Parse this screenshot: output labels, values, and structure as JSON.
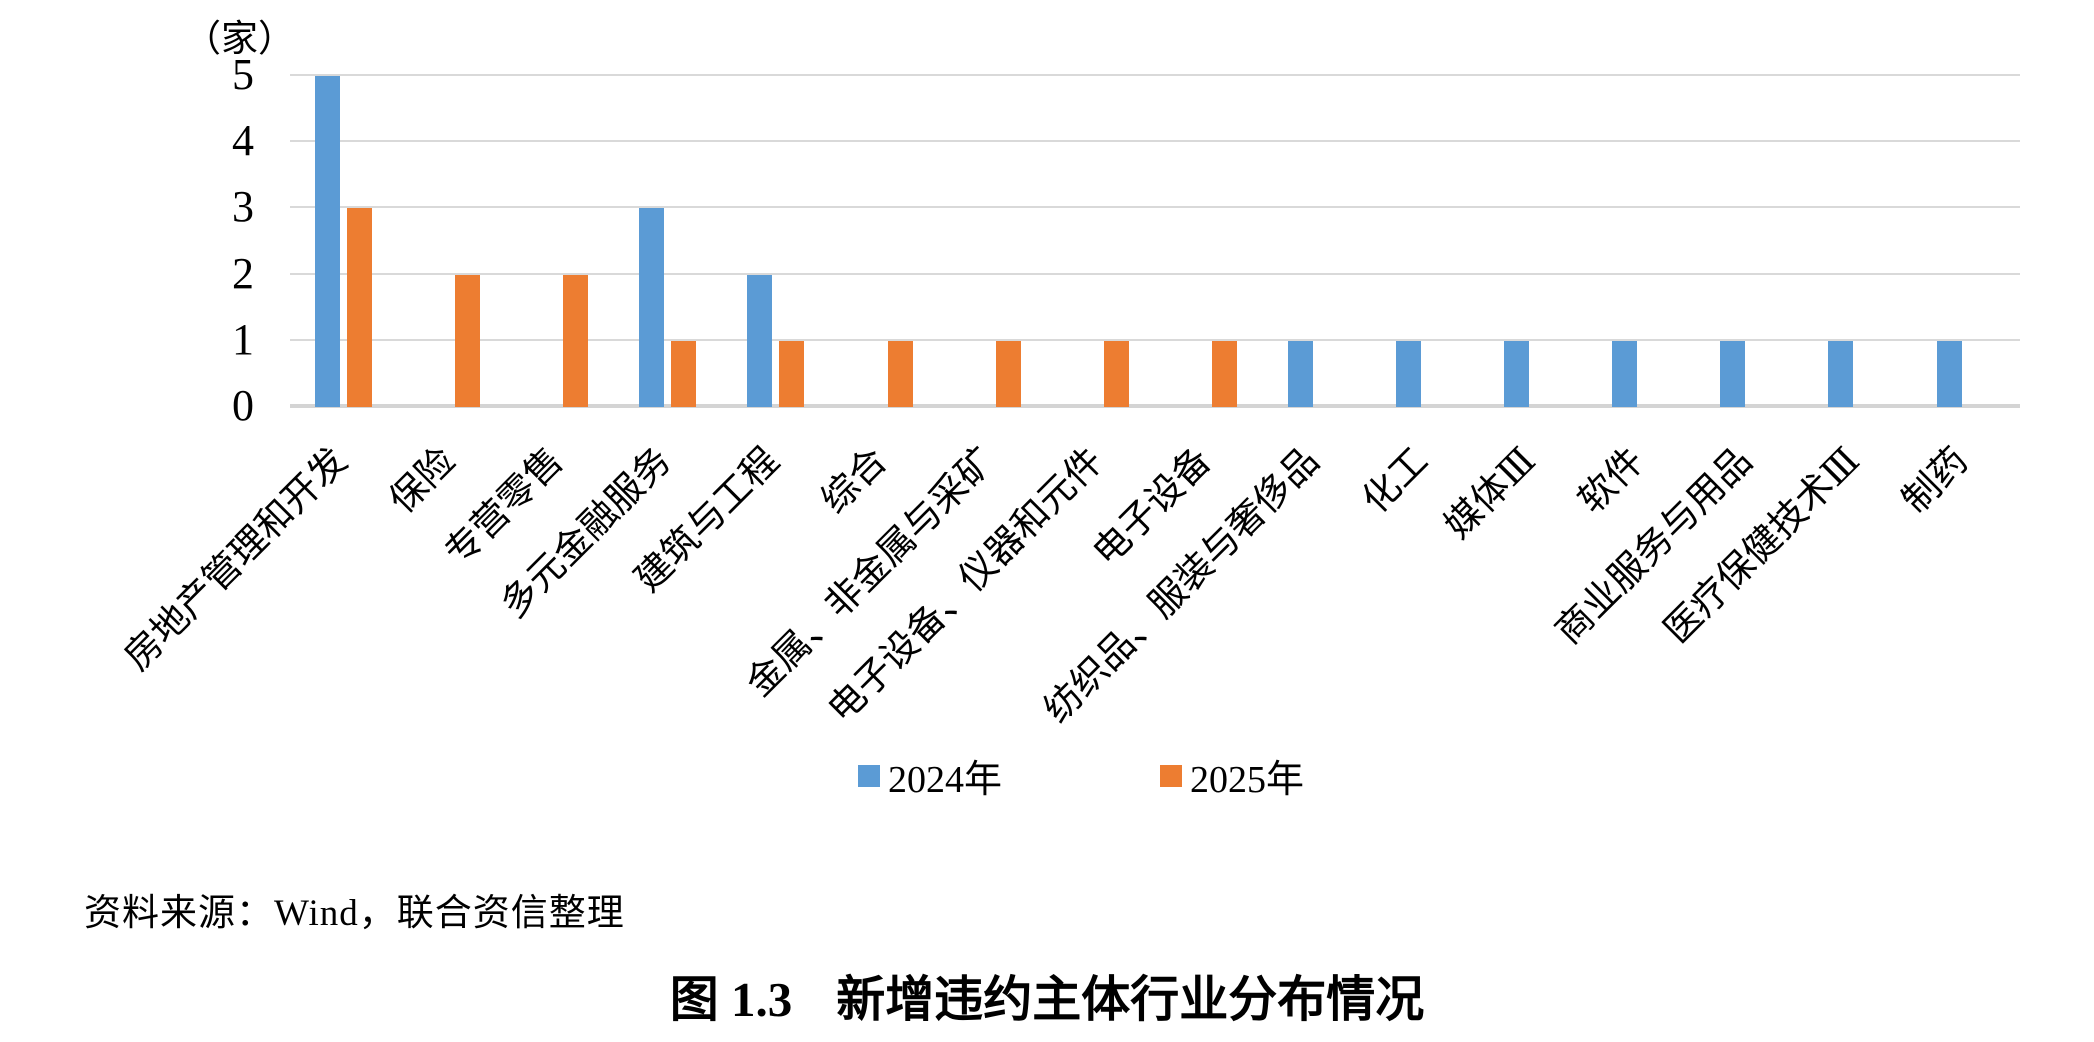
{
  "figure": {
    "unit_label": "（家）",
    "source_note": "资料来源：Wind，联合资信整理",
    "caption_label": "图 1.3",
    "caption_title": "新增违约主体行业分布情况"
  },
  "chart_data": {
    "type": "bar",
    "title": "图 1.3 新增违约主体行业分布情况",
    "ylabel": "（家）",
    "xlabel": "",
    "ylim": [
      0,
      5
    ],
    "yticks": [
      0,
      1,
      2,
      3,
      4,
      5
    ],
    "grid": true,
    "gridline_color": "#D9D9D9",
    "legend_position": "bottom",
    "categories": [
      "房地产管理和开发",
      "保险",
      "专营零售",
      "多元金融服务",
      "建筑与工程",
      "综合",
      "金属、非金属与采矿",
      "电子设备、仪器和元件",
      "电子设备",
      "纺织品、服装与奢侈品",
      "化工",
      "媒体Ⅲ",
      "软件",
      "商业服务与用品",
      "医疗保健技术Ⅲ",
      "制药"
    ],
    "series": [
      {
        "name": "2024年",
        "color": "#5B9BD5",
        "values": [
          5,
          0,
          0,
          3,
          2,
          0,
          0,
          0,
          0,
          1,
          1,
          1,
          1,
          1,
          1,
          1
        ]
      },
      {
        "name": "2025年",
        "color": "#ED7D31",
        "values": [
          3,
          2,
          2,
          1,
          1,
          1,
          1,
          1,
          1,
          0,
          0,
          0,
          0,
          0,
          0,
          0
        ]
      }
    ]
  }
}
